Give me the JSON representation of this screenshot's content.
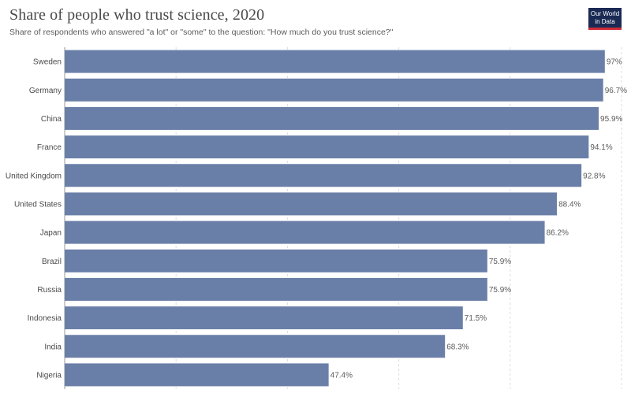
{
  "header": {
    "title": "Share of people who trust science, 2020",
    "subtitle": "Share of respondents who answered \"a lot\" or \"some\" to the question: \"How much do you trust science?\"",
    "logo_line1": "Our World",
    "logo_line2": "in Data"
  },
  "colors": {
    "bar": "#6a7fa8",
    "logo_bg": "#1a2a55",
    "logo_accent": "#ce2c3a"
  },
  "chart_data": {
    "type": "bar",
    "orientation": "horizontal",
    "title": "Share of people who trust science, 2020",
    "subtitle": "Share of respondents who answered \"a lot\" or \"some\" to the question: \"How much do you trust science?\"",
    "categories": [
      "Sweden",
      "Germany",
      "China",
      "France",
      "United Kingdom",
      "United States",
      "Japan",
      "Brazil",
      "Russia",
      "Indonesia",
      "India",
      "Nigeria"
    ],
    "values": [
      97,
      96.7,
      95.9,
      94.1,
      92.8,
      88.4,
      86.2,
      75.9,
      75.9,
      71.5,
      68.3,
      47.4
    ],
    "labels": [
      "97%",
      "96.7%",
      "95.9%",
      "94.1%",
      "92.8%",
      "88.4%",
      "86.2%",
      "75.9%",
      "75.9%",
      "71.5%",
      "68.3%",
      "47.4%"
    ],
    "xlim": [
      0,
      100
    ],
    "grid": true,
    "legend": "none"
  }
}
